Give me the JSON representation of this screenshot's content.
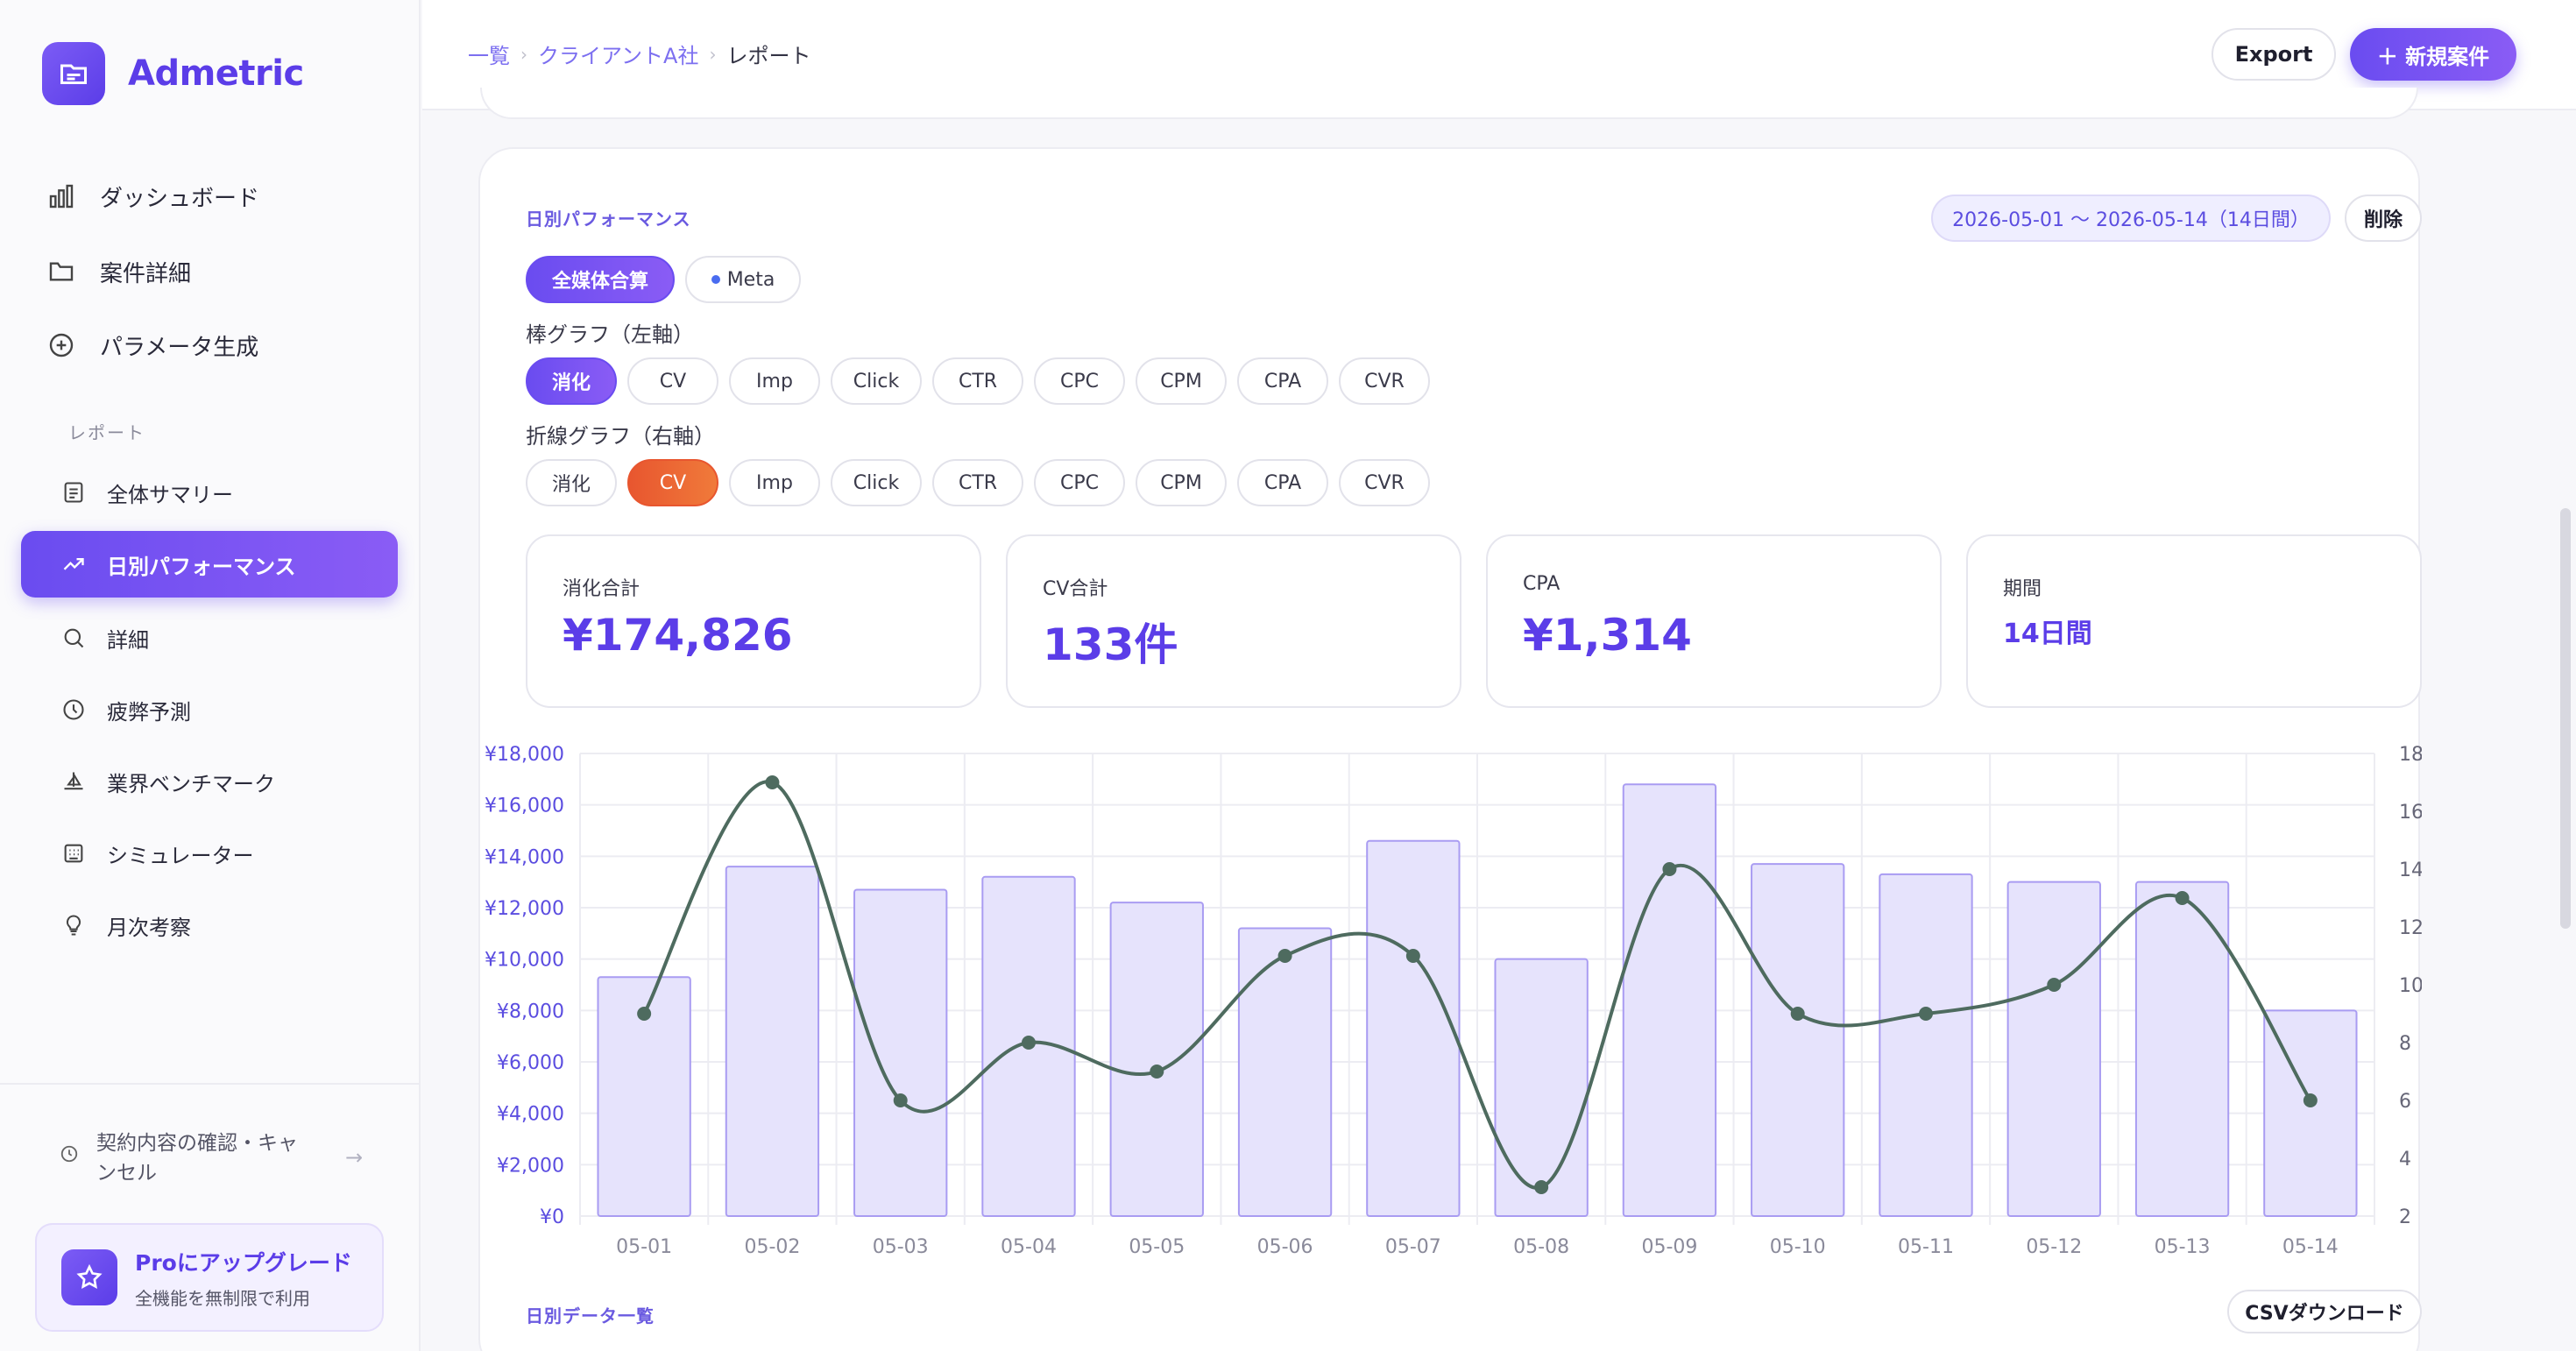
{
  "app": {
    "name": "Admetric"
  },
  "sidebar": {
    "items": [
      {
        "label": "ダッシュボード",
        "icon": "bar-chart-icon"
      },
      {
        "label": "案件詳細",
        "icon": "folder-icon"
      },
      {
        "label": "パラメータ生成",
        "icon": "plus-circle-icon"
      }
    ],
    "section_label": "レポート",
    "report_items": [
      {
        "label": "全体サマリー",
        "icon": "document-icon"
      },
      {
        "label": "日別パフォーマンス",
        "icon": "trend-icon",
        "active": true
      },
      {
        "label": "詳細",
        "icon": "search-icon"
      },
      {
        "label": "疲弊予測",
        "icon": "clock-icon"
      },
      {
        "label": "業界ベンチマーク",
        "icon": "sailboat-icon"
      },
      {
        "label": "シミュレーター",
        "icon": "calculator-icon"
      },
      {
        "label": "月次考察",
        "icon": "lightbulb-icon"
      }
    ],
    "contract_label": "契約内容の確認・キャンセル",
    "upgrade": {
      "title": "Proにアップグレード",
      "subtitle": "全機能を無制限で利用"
    }
  },
  "header": {
    "breadcrumb": [
      "一覧",
      "クライアントA社",
      "レポート"
    ],
    "export_label": "Export",
    "new_label": "＋ 新規案件"
  },
  "card": {
    "title": "日別パフォーマンス",
    "date_range": "2026-05-01 〜 2026-05-14（14日間）",
    "delete_label": "削除",
    "media_tabs": [
      {
        "label": "全媒体合算",
        "active": true
      },
      {
        "label": "Meta",
        "active": false
      }
    ],
    "bar_label": "棒グラフ（左軸）",
    "line_label": "折線グラフ（右軸）",
    "metrics": [
      "消化",
      "CV",
      "Imp",
      "Click",
      "CTR",
      "CPC",
      "CPM",
      "CPA",
      "CVR"
    ],
    "bar_selected": "消化",
    "line_selected": "CV",
    "kpis": [
      {
        "label": "消化合計",
        "value": "¥174,826"
      },
      {
        "label": "CV合計",
        "value": "133件"
      },
      {
        "label": "CPA",
        "value": "¥1,314"
      },
      {
        "label": "期間",
        "value": "14日間"
      }
    ],
    "table_title": "日別データ一覧",
    "csv_label": "CSVダウンロード"
  },
  "colors": {
    "accent": "#5b3de8",
    "bar_fill": "#e6e3fc",
    "bar_stroke": "#a99cf2",
    "line": "#4e6b5f",
    "orange": "#e8562f"
  },
  "chart_data": {
    "type": "bar",
    "categories": [
      "05-01",
      "05-02",
      "05-03",
      "05-04",
      "05-05",
      "05-06",
      "05-07",
      "05-08",
      "05-09",
      "05-10",
      "05-11",
      "05-12",
      "05-13",
      "05-14"
    ],
    "series": [
      {
        "values": [
          9300,
          13600,
          12700,
          13200,
          12200,
          11200,
          14600,
          10000,
          16800,
          13700,
          13300,
          13000,
          13000,
          8000
        ],
        "axis": "left",
        "type": "bar"
      },
      {
        "values": [
          9,
          17,
          6,
          8,
          7,
          11,
          11,
          3,
          14,
          9,
          9,
          10,
          13,
          6
        ],
        "axis": "right",
        "type": "line"
      }
    ],
    "y_left": {
      "min": 0,
      "max": 18000,
      "ticks": [
        "¥0",
        "¥2,000",
        "¥4,000",
        "¥6,000",
        "¥8,000",
        "¥10,000",
        "¥12,000",
        "¥14,000",
        "¥16,000",
        "¥18,000"
      ]
    },
    "y_right": {
      "min": 2,
      "max": 18,
      "ticks": [
        "2",
        "4",
        "6",
        "8",
        "10",
        "12",
        "14",
        "16",
        "18"
      ]
    },
    "grid": true
  }
}
